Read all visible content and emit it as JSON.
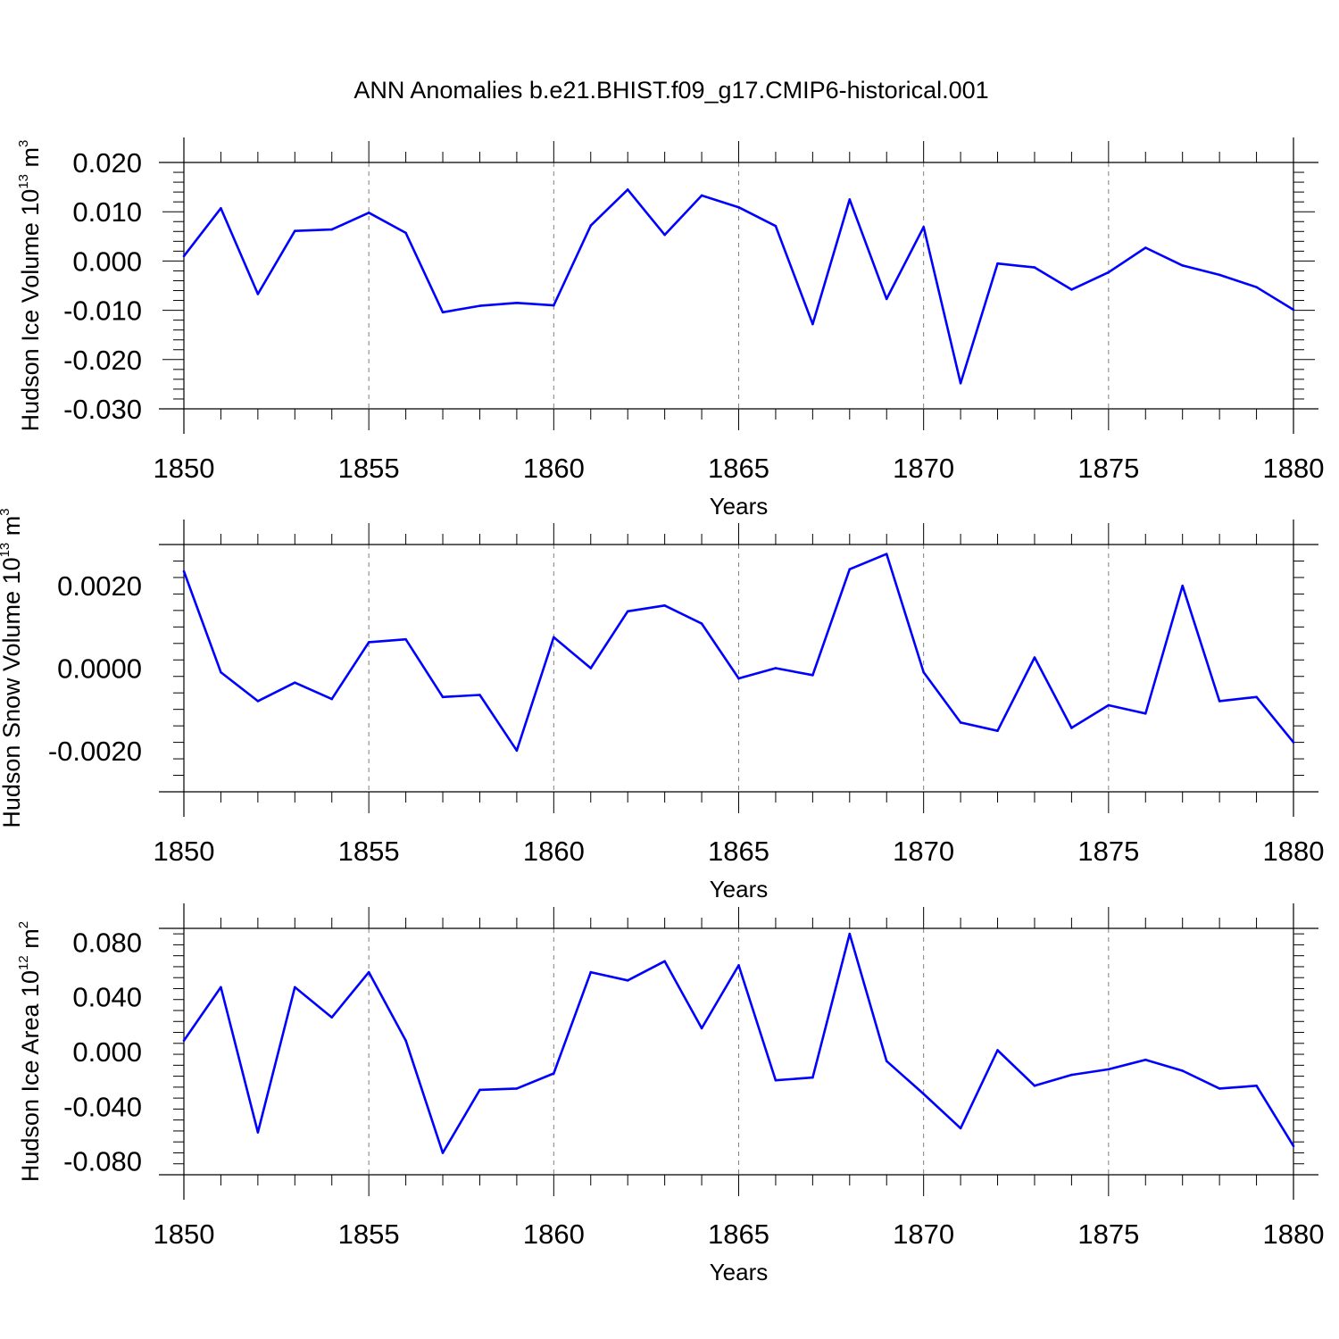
{
  "title": "ANN Anomalies b.e21.BHIST.f09_g17.CMIP6-historical.001",
  "colors": {
    "line": "#0000ff",
    "axis": "#000000",
    "grid": "#808080"
  },
  "chart_data": [
    {
      "type": "line",
      "ylabel": {
        "base": "Hudson Ice Volume 10",
        "exponent": "13",
        "unit": " m",
        "unit_exponent": "3"
      },
      "xlabel": "Years",
      "xlim": [
        1850,
        1880
      ],
      "ylim": [
        -0.03,
        0.02
      ],
      "grid": "x-dashed",
      "x_ticks": [
        "1850",
        "1855",
        "1860",
        "1865",
        "1870",
        "1875",
        "1880"
      ],
      "y_ticks": [
        {
          "value": 0.02,
          "label": "0.020"
        },
        {
          "value": 0.01,
          "label": "0.010"
        },
        {
          "value": 0.0,
          "label": "0.000"
        },
        {
          "value": -0.01,
          "label": "-0.010"
        },
        {
          "value": -0.02,
          "label": "-0.020"
        },
        {
          "value": -0.03,
          "label": "-0.030"
        }
      ],
      "x": [
        1850,
        1851,
        1852,
        1853,
        1854,
        1855,
        1856,
        1857,
        1858,
        1859,
        1860,
        1861,
        1862,
        1863,
        1864,
        1865,
        1866,
        1867,
        1868,
        1869,
        1870,
        1871,
        1872,
        1873,
        1874,
        1875,
        1876,
        1877,
        1878,
        1879,
        1880
      ],
      "y": [
        0.001,
        0.0107,
        -0.0067,
        0.0061,
        0.0064,
        0.0098,
        0.0057,
        -0.0104,
        -0.0091,
        -0.0085,
        -0.009,
        0.0072,
        0.0145,
        0.0053,
        0.0133,
        0.0109,
        0.0071,
        -0.0128,
        0.0125,
        -0.0077,
        0.0069,
        -0.0248,
        -0.0005,
        -0.0013,
        -0.0058,
        -0.0023,
        0.0027,
        -0.0009,
        -0.0028,
        -0.0053,
        -0.0099
      ]
    },
    {
      "type": "line",
      "ylabel": {
        "base": "Hudson Snow Volume 10",
        "exponent": "13",
        "unit": " m",
        "unit_exponent": "3"
      },
      "xlabel": "Years",
      "xlim": [
        1850,
        1880
      ],
      "ylim": [
        -0.003,
        0.003
      ],
      "grid": "x-dashed",
      "x_ticks": [
        "1850",
        "1855",
        "1860",
        "1865",
        "1870",
        "1875",
        "1880"
      ],
      "y_ticks": [
        {
          "value": 0.002,
          "label": "0.0020"
        },
        {
          "value": 0.0,
          "label": "0.0000"
        },
        {
          "value": -0.002,
          "label": "-0.0020"
        }
      ],
      "x": [
        1850,
        1851,
        1852,
        1853,
        1854,
        1855,
        1856,
        1857,
        1858,
        1859,
        1860,
        1861,
        1862,
        1863,
        1864,
        1865,
        1866,
        1867,
        1868,
        1869,
        1870,
        1871,
        1872,
        1873,
        1874,
        1875,
        1876,
        1877,
        1878,
        1879,
        1880
      ],
      "y": [
        0.00235,
        -0.0001,
        -0.0008,
        -0.00035,
        -0.00075,
        0.00063,
        0.0007,
        -0.0007,
        -0.00065,
        -0.002,
        0.00075,
        0.0,
        0.00138,
        0.00152,
        0.00108,
        -0.00025,
        0.0,
        -0.00017,
        0.0024,
        0.00277,
        -0.0001,
        -0.00132,
        -0.00152,
        0.00026,
        -0.00145,
        -0.0009,
        -0.0011,
        0.002,
        -0.0008,
        -0.0007,
        -0.0018
      ]
    },
    {
      "type": "line",
      "ylabel": {
        "base": "Hudson Ice Area 10",
        "exponent": "12",
        "unit": " m",
        "unit_exponent": "2"
      },
      "xlabel": "Years",
      "xlim": [
        1850,
        1880
      ],
      "ylim": [
        -0.09,
        0.09
      ],
      "grid": "x-dashed",
      "x_ticks": [
        "1850",
        "1855",
        "1860",
        "1865",
        "1870",
        "1875",
        "1880"
      ],
      "y_ticks": [
        {
          "value": 0.08,
          "label": "0.080"
        },
        {
          "value": 0.04,
          "label": "0.040"
        },
        {
          "value": 0.0,
          "label": "0.000"
        },
        {
          "value": -0.04,
          "label": "-0.040"
        },
        {
          "value": -0.08,
          "label": "-0.080"
        }
      ],
      "x": [
        1850,
        1851,
        1852,
        1853,
        1854,
        1855,
        1856,
        1857,
        1858,
        1859,
        1860,
        1861,
        1862,
        1863,
        1864,
        1865,
        1866,
        1867,
        1868,
        1869,
        1870,
        1871,
        1872,
        1873,
        1874,
        1875,
        1876,
        1877,
        1878,
        1879,
        1880
      ],
      "y": [
        0.008,
        0.047,
        -0.059,
        0.047,
        0.025,
        0.058,
        0.008,
        -0.074,
        -0.028,
        -0.027,
        -0.016,
        0.058,
        0.052,
        0.066,
        0.017,
        0.063,
        -0.021,
        -0.019,
        0.086,
        -0.007,
        -0.031,
        -0.056,
        0.001,
        -0.025,
        -0.017,
        -0.013,
        -0.006,
        -0.014,
        -0.027,
        -0.025,
        -0.069
      ]
    }
  ]
}
